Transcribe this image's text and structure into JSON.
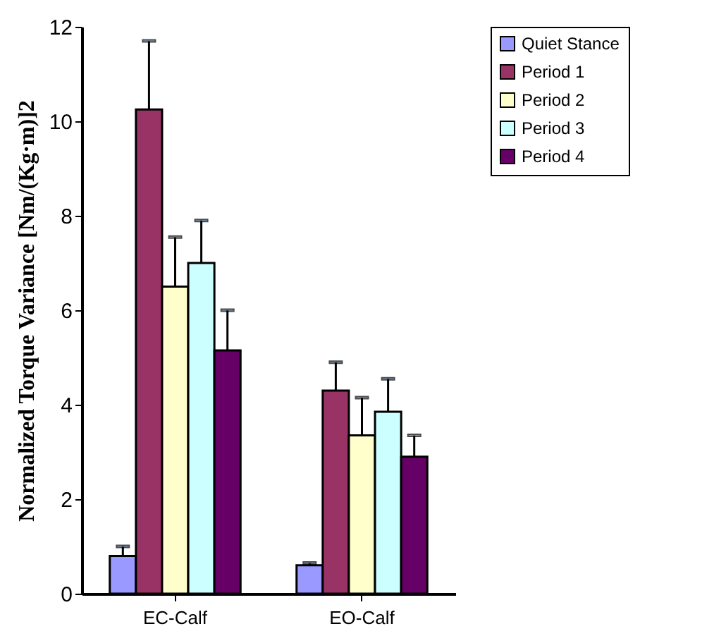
{
  "chart_data": {
    "type": "bar",
    "ylabel": "Normalized Torque Variance [Nm/(Kg·m)]2",
    "categories": [
      "EC-Calf",
      "EO-Calf"
    ],
    "series": [
      {
        "name": "Quiet Stance",
        "color": "#9999ff",
        "values": [
          0.8,
          0.6
        ],
        "errors": [
          [
            0.8,
            1.0
          ],
          [
            0.6,
            0.65
          ]
        ]
      },
      {
        "name": "Period 1",
        "color": "#993366",
        "values": [
          10.25,
          4.3
        ],
        "errors": [
          [
            10.25,
            11.7
          ],
          [
            4.3,
            4.9
          ]
        ]
      },
      {
        "name": "Period 2",
        "color": "#ffffcc",
        "values": [
          6.5,
          3.35
        ],
        "errors": [
          [
            6.5,
            7.55
          ],
          [
            3.35,
            4.15
          ]
        ]
      },
      {
        "name": "Period 3",
        "color": "#ccffff",
        "values": [
          7.0,
          3.85
        ],
        "errors": [
          [
            7.0,
            7.9
          ],
          [
            3.85,
            4.55
          ]
        ]
      },
      {
        "name": "Period 4",
        "color": "#660066",
        "values": [
          5.15,
          2.9
        ],
        "errors": [
          [
            5.15,
            6.0
          ],
          [
            2.9,
            3.35
          ]
        ]
      }
    ],
    "ylim": [
      0,
      12
    ],
    "yticks": [
      0,
      2,
      4,
      6,
      8,
      10,
      12
    ],
    "grid": false,
    "legend": "right"
  }
}
